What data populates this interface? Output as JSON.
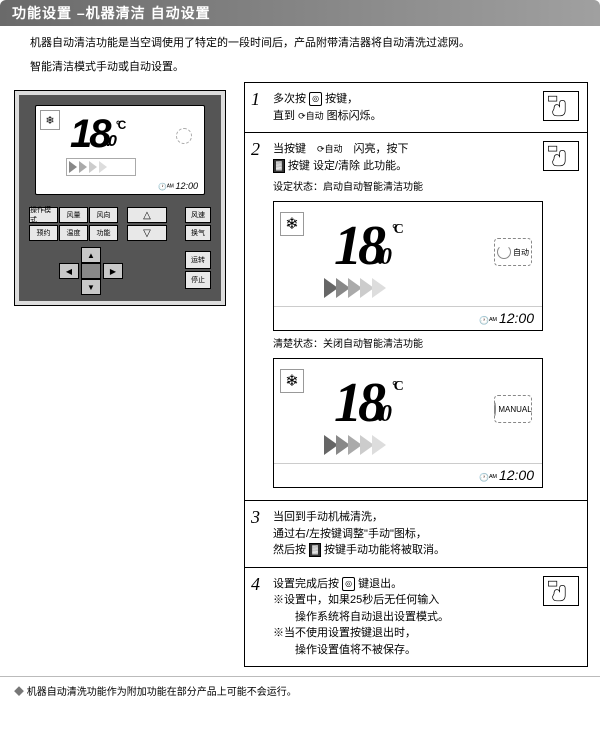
{
  "header": {
    "title": "功能设置 –机器清洁 自动设置"
  },
  "intro": "机器自动清洁功能是当空调使用了特定的一段时间后，产品附带清洁器将自动清洗过滤网。",
  "subintro": "智能清洁模式手动或自动设置。",
  "remote": {
    "temp_int": "18",
    "temp_dec": ".0",
    "temp_unit": "°C",
    "clock": "12:00",
    "snow_icon": "❄",
    "btn_labels": [
      "操作模式",
      "风量",
      "风向",
      "预约",
      "温度",
      "功能"
    ],
    "side_labels": [
      "风速",
      "换气"
    ],
    "power_labels": [
      "运转",
      "停止"
    ]
  },
  "steps": [
    {
      "num": "1",
      "lines": [
        "多次按 <tinybtn>◎</tinybtn> 按键，",
        "直到 <small>⟳自动</small> 图标闪烁。"
      ]
    },
    {
      "num": "2",
      "lines": [
        "当按键　<small>⟳自动</small>　闪亮，按下",
        "<iconbox>▓</iconbox> 按键 设定/清除 此功能。"
      ],
      "lcds": [
        {
          "label": "设定状态：启动自动智能清洁功能",
          "temp_int": "18",
          "temp_dec": ".0",
          "unit": "°C",
          "clock": "12:00",
          "badge": "自动",
          "snow": "❄"
        },
        {
          "label": "清楚状态：关闭自动智能清洁功能",
          "temp_int": "18",
          "temp_dec": ".0",
          "unit": "°C",
          "clock": "12:00",
          "badge": "MANUAL",
          "snow": "❄"
        }
      ]
    },
    {
      "num": "3",
      "lines": [
        "当回到手动机械清洗，",
        "通过右/左按键调整\"手动\"图标，",
        "然后按 <iconbox>▓</iconbox> 按键手动功能将被取消。"
      ]
    },
    {
      "num": "4",
      "lines": [
        "设置完成后按 <tinybtn>◎</tinybtn> 键退出。",
        "※设置中，如果25秒后无任何输入",
        "　　操作系统将自动退出设置模式。",
        "",
        "※当不使用设置按键退出时，",
        "　　操作设置值将不被保存。"
      ]
    }
  ],
  "footnote": "机器自动清洗功能作为附加功能在部分产品上可能不会运行。",
  "colors": {
    "header_bg": "#6a6a6a",
    "text": "#000000",
    "border": "#000000"
  }
}
